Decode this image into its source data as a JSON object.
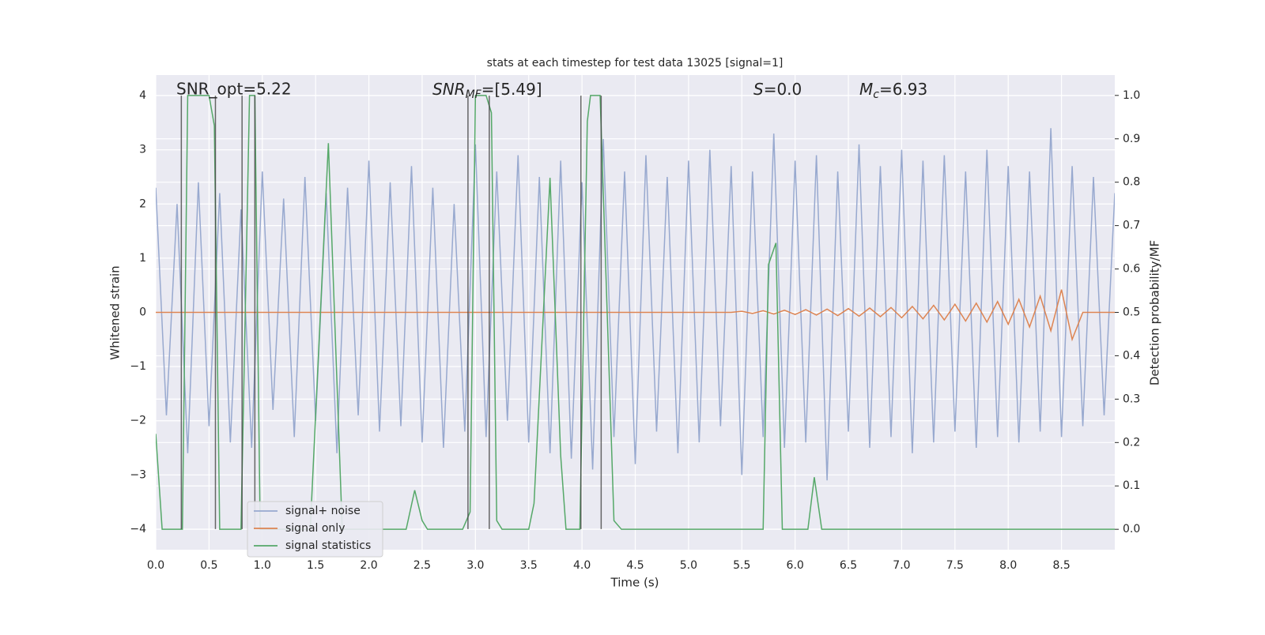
{
  "chart_data": {
    "type": "line",
    "title": "stats at each timestep for test data 13025 [signal=1]",
    "xlabel": "Time (s)",
    "ylabel": "Whitened strain",
    "y2label": "Detection probability/MF",
    "xlim": [
      0,
      9.0
    ],
    "ylim": [
      -4.38,
      4.38
    ],
    "y2lim": [
      -0.047,
      1.047
    ],
    "xticks": [
      {
        "value": 0,
        "label": "0.0"
      },
      0.5,
      {
        "value": 1,
        "label": "1.0"
      },
      1.5,
      {
        "value": 2,
        "label": "2.0"
      },
      2.5,
      {
        "value": 3,
        "label": "3.0"
      },
      3.5,
      {
        "value": 4,
        "label": "4.0"
      },
      4.5,
      {
        "value": 5,
        "label": "5.0"
      },
      5.5,
      {
        "value": 6,
        "label": "6.0"
      },
      6.5,
      {
        "value": 7,
        "label": "7.0"
      },
      7.5,
      {
        "value": 8,
        "label": "8.0"
      },
      8.5
    ],
    "yticks": [
      {
        "value": -4,
        "label": "−4"
      },
      {
        "value": -3,
        "label": "−3"
      },
      {
        "value": -2,
        "label": "−2"
      },
      {
        "value": -1,
        "label": "−1"
      },
      0,
      1,
      2,
      3,
      4
    ],
    "y2ticks": [
      {
        "value": 0,
        "label": "0.0"
      },
      0.1,
      0.2,
      0.3,
      0.4,
      0.5,
      0.6,
      0.7,
      0.8,
      0.9,
      {
        "value": 1,
        "label": "1.0"
      }
    ],
    "grid": true,
    "legend": "lower left",
    "annotations": [
      "SNR_opt=5.22",
      {
        "base": "SNR",
        "sub": "MF",
        "rest": "=[5.49]"
      },
      {
        "base": "S",
        "rest": "=0.0"
      },
      {
        "base": "M",
        "sub": "c",
        "rest": "=6.93"
      }
    ],
    "detection_lines": [
      0.24,
      0.56,
      0.81,
      0.93,
      2.93,
      3.13,
      3.99,
      4.18
    ],
    "detection_line_color": "#444444",
    "x": [
      0,
      0.1,
      0.2,
      0.3,
      0.4,
      0.5,
      0.6,
      0.7,
      0.8,
      0.9,
      1.0,
      1.1,
      1.2,
      1.3,
      1.4,
      1.5,
      1.6,
      1.7,
      1.8,
      1.9,
      2.0,
      2.1,
      2.2,
      2.3,
      2.4,
      2.5,
      2.6,
      2.7,
      2.8,
      2.9,
      3.0,
      3.1,
      3.2,
      3.3,
      3.4,
      3.5,
      3.6,
      3.7,
      3.8,
      3.9,
      4.0,
      4.1,
      4.2,
      4.3,
      4.4,
      4.5,
      4.6,
      4.7,
      4.8,
      4.9,
      5.0,
      5.1,
      5.2,
      5.3,
      5.4,
      5.5,
      5.6,
      5.7,
      5.8,
      5.9,
      6.0,
      6.1,
      6.2,
      6.3,
      6.4,
      6.5,
      6.6,
      6.7,
      6.8,
      6.9,
      7.0,
      7.1,
      7.2,
      7.3,
      7.4,
      7.5,
      7.6,
      7.7,
      7.8,
      7.9,
      8.0,
      8.1,
      8.2,
      8.3,
      8.4,
      8.5,
      8.6,
      8.7,
      8.8,
      8.9,
      9.0
    ],
    "series": [
      {
        "name": "signal+ noise",
        "color": "#98a9cf",
        "values": [
          2.3,
          -1.9,
          2.0,
          -2.6,
          2.4,
          -2.1,
          2.2,
          -2.4,
          1.9,
          -2.5,
          2.6,
          -1.8,
          2.1,
          -2.3,
          2.5,
          -2.0,
          2.2,
          -2.6,
          2.3,
          -1.9,
          2.8,
          -2.2,
          2.4,
          -2.1,
          2.7,
          -2.4,
          2.3,
          -2.5,
          2.0,
          -2.2,
          3.1,
          -2.3,
          2.6,
          -2.0,
          2.9,
          -2.4,
          2.5,
          -2.6,
          2.8,
          -2.7,
          2.4,
          -2.9,
          3.2,
          -2.3,
          2.6,
          -2.8,
          2.9,
          -2.2,
          2.5,
          -2.6,
          2.8,
          -2.4,
          3.0,
          -2.1,
          2.7,
          -3.0,
          2.6,
          -2.3,
          3.3,
          -2.5,
          2.8,
          -2.4,
          2.9,
          -3.1,
          2.6,
          -2.2,
          3.1,
          -2.5,
          2.7,
          -2.3,
          3.0,
          -2.6,
          2.8,
          -2.4,
          2.9,
          -2.2,
          2.6,
          -2.5,
          3.0,
          -2.3,
          2.7,
          -2.4,
          2.6,
          -2.2,
          3.4,
          -2.3,
          2.7,
          -2.1,
          2.5,
          -1.9,
          2.2
        ]
      },
      {
        "name": "signal only",
        "color": "#dd8452",
        "values": [
          0,
          0,
          0,
          0,
          0,
          0,
          0,
          0,
          0,
          0,
          0,
          0,
          0,
          0,
          0,
          0,
          0,
          0,
          0,
          0,
          0,
          0,
          0,
          0,
          0,
          0,
          0,
          0,
          0,
          0,
          0,
          0,
          0,
          0,
          0,
          0,
          0,
          0,
          0,
          0,
          0,
          0,
          0,
          0,
          0,
          0,
          0,
          0,
          0,
          0,
          0,
          0,
          0,
          0,
          0,
          0.02,
          -0.02,
          0.03,
          -0.03,
          0.04,
          -0.04,
          0.05,
          -0.05,
          0.06,
          -0.06,
          0.07,
          -0.07,
          0.08,
          -0.08,
          0.09,
          -0.1,
          0.11,
          -0.12,
          0.13,
          -0.14,
          0.15,
          -0.16,
          0.17,
          -0.18,
          0.2,
          -0.22,
          0.24,
          -0.27,
          0.3,
          -0.34,
          0.42,
          -0.5,
          0,
          0,
          0,
          0
        ]
      },
      {
        "name": "signal statistics",
        "color": "#55a868",
        "axis": "y2",
        "x": [
          0,
          0.06,
          0.25,
          0.3,
          0.5,
          0.55,
          0.6,
          0.8,
          0.88,
          0.93,
          0.98,
          1.45,
          1.62,
          1.75,
          2.35,
          2.43,
          2.5,
          2.55,
          2.88,
          2.95,
          3.0,
          3.1,
          3.15,
          3.2,
          3.25,
          3.5,
          3.55,
          3.7,
          3.8,
          3.85,
          3.98,
          4.05,
          4.08,
          4.17,
          4.3,
          4.37,
          5.7,
          5.75,
          5.82,
          5.88,
          6.12,
          6.18,
          6.25,
          9.0
        ],
        "values": [
          0.22,
          0.0,
          0.0,
          1.0,
          1.0,
          0.93,
          0.0,
          0.0,
          1.0,
          1.0,
          0.0,
          0.0,
          0.89,
          0.0,
          0.0,
          0.09,
          0.02,
          0.0,
          0.0,
          0.04,
          1.0,
          1.0,
          0.96,
          0.02,
          0.0,
          0.0,
          0.06,
          0.81,
          0.17,
          0.0,
          0.0,
          0.94,
          1.0,
          1.0,
          0.02,
          0.0,
          0.0,
          0.61,
          0.66,
          0.0,
          0.0,
          0.12,
          0.0,
          0.0
        ]
      }
    ]
  }
}
